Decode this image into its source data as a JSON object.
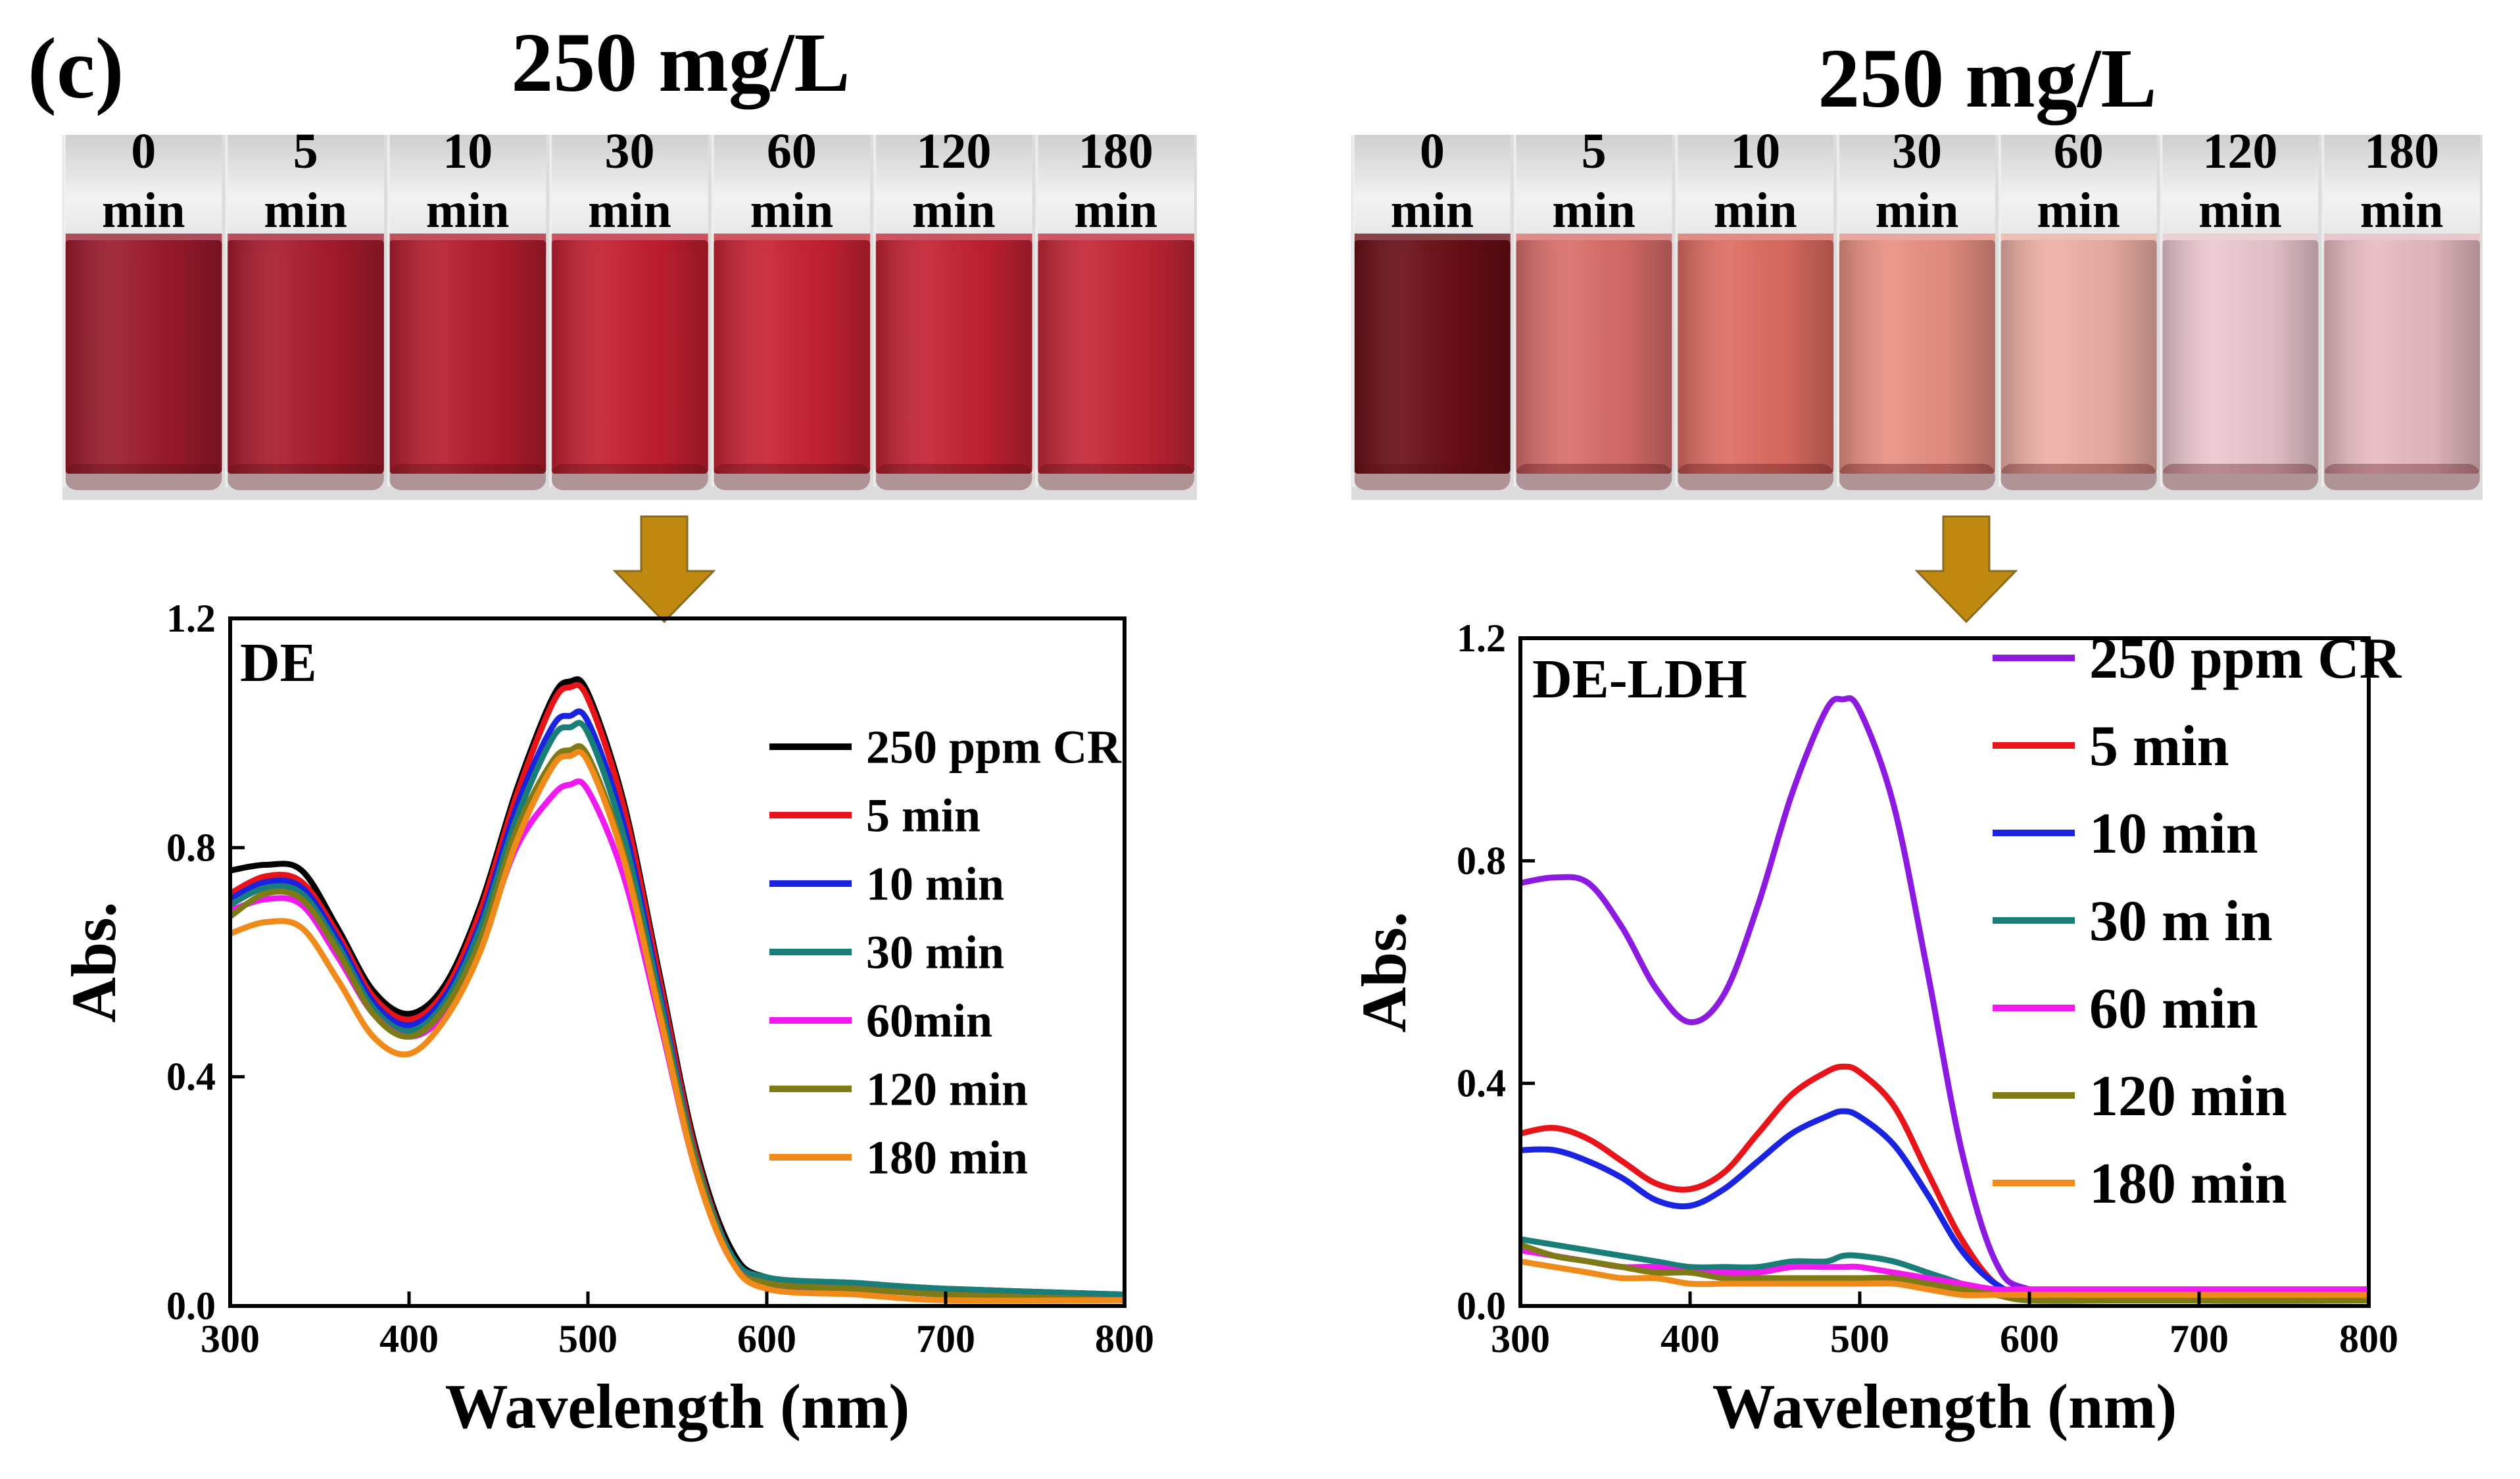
{
  "panel_label": "(c)",
  "photos": [
    {
      "title": "250 mg/L",
      "vials": [
        {
          "time": "0",
          "unit": "min",
          "color": "#9b1a2c"
        },
        {
          "time": "5",
          "unit": "min",
          "color": "#a81b2c"
        },
        {
          "time": "10",
          "unit": "min",
          "color": "#b41c2d"
        },
        {
          "time": "30",
          "unit": "min",
          "color": "#c41f30"
        },
        {
          "time": "60",
          "unit": "min",
          "color": "#c82233"
        },
        {
          "time": "120",
          "unit": "min",
          "color": "#c42233"
        },
        {
          "time": "180",
          "unit": "min",
          "color": "#c42536"
        }
      ]
    },
    {
      "title": "250 mg/L",
      "vials": [
        {
          "time": "0",
          "unit": "min",
          "color": "#6a0d16"
        },
        {
          "time": "5",
          "unit": "min",
          "color": "#d96d6a"
        },
        {
          "time": "10",
          "unit": "min",
          "color": "#de6c62"
        },
        {
          "time": "30",
          "unit": "min",
          "color": "#e99083"
        },
        {
          "time": "60",
          "unit": "min",
          "color": "#efb0a6"
        },
        {
          "time": "120",
          "unit": "min",
          "color": "#ecc8cf"
        },
        {
          "time": "180",
          "unit": "min",
          "color": "#e8bcc3"
        }
      ]
    }
  ],
  "arrow_color": "#c08a10",
  "chart_data": [
    {
      "type": "line",
      "title": "DE",
      "xlabel": "Wavelength (nm)",
      "ylabel": "Abs.",
      "xlim": [
        300,
        800
      ],
      "ylim": [
        0.0,
        1.2
      ],
      "xticks": [
        "300",
        "400",
        "500",
        "600",
        "700",
        "800"
      ],
      "yticks": [
        "0.0",
        "0.4",
        "0.8",
        "1.2"
      ],
      "x": [
        300,
        320,
        340,
        360,
        380,
        400,
        420,
        440,
        460,
        480,
        490,
        500,
        520,
        540,
        560,
        580,
        600,
        650,
        700,
        800
      ],
      "series": [
        {
          "name": "250 ppm CR",
          "color": "#000000",
          "values": [
            0.76,
            0.77,
            0.76,
            0.66,
            0.55,
            0.51,
            0.56,
            0.7,
            0.9,
            1.06,
            1.09,
            1.07,
            0.88,
            0.58,
            0.28,
            0.1,
            0.05,
            0.04,
            0.03,
            0.02
          ]
        },
        {
          "name": "5 min",
          "color": "#e8141a",
          "values": [
            0.72,
            0.75,
            0.74,
            0.65,
            0.54,
            0.5,
            0.55,
            0.69,
            0.89,
            1.05,
            1.08,
            1.06,
            0.87,
            0.57,
            0.27,
            0.09,
            0.04,
            0.03,
            0.02,
            0.01
          ]
        },
        {
          "name": "10 min",
          "color": "#1a23e0",
          "values": [
            0.71,
            0.74,
            0.73,
            0.64,
            0.53,
            0.49,
            0.54,
            0.67,
            0.87,
            1.01,
            1.03,
            1.02,
            0.84,
            0.55,
            0.26,
            0.09,
            0.04,
            0.03,
            0.02,
            0.01
          ]
        },
        {
          "name": "30 min",
          "color": "#1a7e78",
          "values": [
            0.7,
            0.73,
            0.72,
            0.63,
            0.52,
            0.48,
            0.53,
            0.66,
            0.85,
            0.99,
            1.01,
            1.0,
            0.82,
            0.54,
            0.26,
            0.09,
            0.05,
            0.04,
            0.03,
            0.02
          ]
        },
        {
          "name": "60min",
          "color": "#f01af0",
          "values": [
            0.69,
            0.71,
            0.7,
            0.61,
            0.51,
            0.47,
            0.51,
            0.63,
            0.8,
            0.89,
            0.91,
            0.9,
            0.75,
            0.5,
            0.24,
            0.08,
            0.04,
            0.03,
            0.02,
            0.01
          ]
        },
        {
          "name": "120 min",
          "color": "#7e7a16",
          "values": [
            0.68,
            0.72,
            0.71,
            0.62,
            0.51,
            0.47,
            0.52,
            0.64,
            0.83,
            0.95,
            0.97,
            0.96,
            0.79,
            0.52,
            0.25,
            0.08,
            0.04,
            0.03,
            0.02,
            0.01
          ]
        },
        {
          "name": "180 min",
          "color": "#f08a1a",
          "values": [
            0.65,
            0.67,
            0.66,
            0.57,
            0.47,
            0.44,
            0.5,
            0.62,
            0.81,
            0.94,
            0.96,
            0.95,
            0.78,
            0.51,
            0.24,
            0.08,
            0.03,
            0.02,
            0.01,
            0.01
          ]
        }
      ]
    },
    {
      "type": "line",
      "title": "DE-LDH",
      "xlabel": "Wavelength (nm)",
      "ylabel": "Abs.",
      "xlim": [
        300,
        800
      ],
      "ylim": [
        0.0,
        1.2
      ],
      "xticks": [
        "300",
        "400",
        "500",
        "600",
        "700",
        "800"
      ],
      "yticks": [
        "0.0",
        "0.4",
        "0.8",
        "1.2"
      ],
      "x": [
        300,
        320,
        340,
        360,
        380,
        400,
        420,
        440,
        460,
        480,
        490,
        500,
        520,
        540,
        560,
        580,
        600,
        650,
        700,
        800
      ],
      "series": [
        {
          "name": "250 ppm CR",
          "color": "#8c1ae0",
          "values": [
            0.76,
            0.77,
            0.76,
            0.68,
            0.57,
            0.51,
            0.56,
            0.72,
            0.92,
            1.07,
            1.09,
            1.07,
            0.9,
            0.6,
            0.28,
            0.08,
            0.03,
            0.02,
            0.02,
            0.02
          ]
        },
        {
          "name": "5 min",
          "color": "#e8141a",
          "values": [
            0.31,
            0.32,
            0.3,
            0.26,
            0.22,
            0.21,
            0.24,
            0.31,
            0.38,
            0.42,
            0.43,
            0.42,
            0.36,
            0.24,
            0.12,
            0.04,
            0.02,
            0.02,
            0.02,
            0.02
          ]
        },
        {
          "name": "10 min",
          "color": "#1a23e0",
          "values": [
            0.28,
            0.28,
            0.26,
            0.23,
            0.19,
            0.18,
            0.21,
            0.26,
            0.31,
            0.34,
            0.35,
            0.34,
            0.29,
            0.2,
            0.1,
            0.04,
            0.02,
            0.02,
            0.02,
            0.02
          ]
        },
        {
          "name": "30 m in",
          "color": "#1a7e78",
          "values": [
            0.12,
            0.11,
            0.1,
            0.09,
            0.08,
            0.07,
            0.07,
            0.07,
            0.08,
            0.08,
            0.09,
            0.09,
            0.08,
            0.06,
            0.04,
            0.02,
            0.02,
            0.02,
            0.01,
            0.01
          ]
        },
        {
          "name": "60 min",
          "color": "#f01af0",
          "values": [
            0.1,
            0.09,
            0.08,
            0.07,
            0.07,
            0.06,
            0.06,
            0.06,
            0.07,
            0.07,
            0.07,
            0.07,
            0.06,
            0.05,
            0.04,
            0.03,
            0.03,
            0.03,
            0.03,
            0.03
          ]
        },
        {
          "name": "120 min",
          "color": "#7e7a16",
          "values": [
            0.11,
            0.09,
            0.08,
            0.07,
            0.06,
            0.06,
            0.05,
            0.05,
            0.05,
            0.05,
            0.05,
            0.05,
            0.05,
            0.04,
            0.03,
            0.02,
            0.01,
            0.01,
            0.01,
            0.01
          ]
        },
        {
          "name": "180 min",
          "color": "#f08a1a",
          "values": [
            0.08,
            0.07,
            0.06,
            0.05,
            0.05,
            0.04,
            0.04,
            0.04,
            0.04,
            0.04,
            0.04,
            0.04,
            0.04,
            0.03,
            0.02,
            0.02,
            0.02,
            0.02,
            0.02,
            0.02
          ]
        }
      ]
    }
  ]
}
